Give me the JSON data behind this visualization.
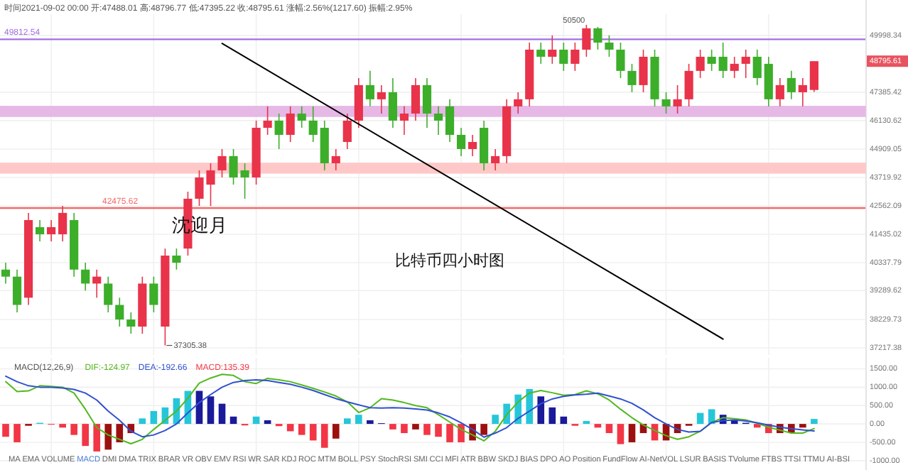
{
  "chart_data": [
    {
      "type": "candlestick",
      "log": "y",
      "grid": true,
      "tick_labels": "y",
      "annotations": [
        "时间2021-09-02 00:00 开:47488.01 高:48796.77 低:47395.22 收:48795.61 涨幅:2.56%(1217.60) 振幅:2.95%",
        "50500",
        "37305.38",
        "沈迎月",
        "比特币四小时图",
        "48795.61"
      ],
      "categories": [
        null,
        null,
        null,
        null,
        null,
        null,
        null,
        null,
        null,
        null,
        null,
        null,
        null,
        null,
        null,
        null,
        null,
        null,
        null,
        null,
        null,
        null,
        null,
        null,
        null,
        null,
        null,
        null,
        null,
        null,
        null,
        null,
        null,
        null,
        null,
        null,
        null,
        null,
        null,
        null,
        null,
        null,
        null,
        null,
        null,
        null,
        null,
        null,
        null,
        null,
        null,
        null,
        null,
        null,
        null,
        null,
        null,
        null,
        null,
        null,
        null,
        null,
        null,
        null,
        null,
        null,
        null,
        null,
        null,
        null,
        null,
        null,
        null,
        null,
        null,
        null
      ],
      "ohlc": [
        [
          40075,
          40338,
          39550,
          39810
        ],
        [
          39810,
          40075,
          38490,
          38760
        ],
        [
          39025,
          42280,
          38760,
          41995
        ],
        [
          41715,
          41995,
          41160,
          41435
        ],
        [
          41435,
          41995,
          41160,
          41715
        ],
        [
          41435,
          42562,
          41160,
          42280
        ],
        [
          41995,
          42280,
          39810,
          40075
        ],
        [
          40075,
          40338,
          39290,
          39550
        ],
        [
          39550,
          40075,
          39025,
          39810
        ],
        [
          39550,
          39810,
          38490,
          38760
        ],
        [
          38760,
          39025,
          37975,
          38230
        ],
        [
          38230,
          38490,
          37722,
          37975
        ],
        [
          37975,
          39810,
          37722,
          39550
        ],
        [
          39550,
          39810,
          38490,
          38760
        ],
        [
          37975,
          40880,
          37305.38,
          40610
        ],
        [
          40610,
          40880,
          40075,
          40338
        ],
        [
          40880,
          43135,
          40610,
          42850
        ],
        [
          42850,
          44015,
          42562,
          43720
        ],
        [
          43425,
          44310,
          42562,
          44015
        ],
        [
          44015,
          44909,
          43720,
          44610
        ],
        [
          44610,
          44909,
          43425,
          43720
        ],
        [
          44015,
          44310,
          42850,
          43720
        ],
        [
          43720,
          46131,
          43425,
          45820
        ],
        [
          45820,
          46755,
          45515,
          46131
        ],
        [
          46131,
          46440,
          44909,
          45515
        ],
        [
          45515,
          46755,
          45210,
          46440
        ],
        [
          46440,
          46755,
          45820,
          46131
        ],
        [
          46131,
          46755,
          45210,
          45515
        ],
        [
          45820,
          46131,
          44015,
          44310
        ],
        [
          44310,
          44909,
          44015,
          44610
        ],
        [
          45210,
          46440,
          44909,
          46131
        ],
        [
          46131,
          48025,
          45820,
          47705
        ],
        [
          47705,
          48350,
          46755,
          47070
        ],
        [
          47070,
          47705,
          46440,
          47385
        ],
        [
          47385,
          48025,
          45820,
          46131
        ],
        [
          46131,
          46755,
          45515,
          46440
        ],
        [
          46440,
          48025,
          46131,
          47705
        ],
        [
          47705,
          48025,
          45820,
          46440
        ],
        [
          46440,
          46755,
          45515,
          46131
        ],
        [
          46755,
          47070,
          45210,
          45515
        ],
        [
          45515,
          45820,
          44610,
          44909
        ],
        [
          44909,
          45515,
          44610,
          45210
        ],
        [
          45820,
          46131,
          44015,
          44310
        ],
        [
          44310,
          44909,
          44015,
          44610
        ],
        [
          44610,
          47070,
          44310,
          46755
        ],
        [
          46755,
          47385,
          46440,
          47070
        ],
        [
          47070,
          49660,
          46755,
          49330
        ],
        [
          49330,
          49660,
          48674,
          49000
        ],
        [
          49000,
          49998,
          48674,
          49330
        ],
        [
          49330,
          49660,
          48350,
          48674
        ],
        [
          48674,
          49660,
          48350,
          49330
        ],
        [
          49330,
          50500,
          49000,
          50335
        ],
        [
          50335,
          50400,
          49330,
          49660
        ],
        [
          49660,
          49998,
          49000,
          49330
        ],
        [
          49330,
          49660,
          48025,
          48350
        ],
        [
          48350,
          48674,
          47385,
          47705
        ],
        [
          47705,
          49330,
          47385,
          49000
        ],
        [
          49000,
          49330,
          46755,
          47070
        ],
        [
          47070,
          47385,
          46440,
          46755
        ],
        [
          46755,
          47705,
          46440,
          47070
        ],
        [
          47070,
          48674,
          46755,
          48350
        ],
        [
          48350,
          49330,
          48025,
          49000
        ],
        [
          49000,
          49330,
          48350,
          48674
        ],
        [
          49000,
          49660,
          48025,
          48350
        ],
        [
          48350,
          49000,
          48025,
          48674
        ],
        [
          48674,
          49330,
          48025,
          49000
        ],
        [
          49000,
          49330,
          47705,
          48025
        ],
        [
          48674,
          49000,
          46755,
          47070
        ],
        [
          47070,
          48025,
          46755,
          47705
        ],
        [
          48025,
          48350,
          47070,
          47385
        ],
        [
          47385,
          48025,
          46755,
          47705
        ],
        [
          47488.01,
          48796.77,
          47395.22,
          48795.61
        ],
        null,
        null,
        null,
        null
      ],
      "series": [
        {
          "type": "line",
          "color": "#000000",
          "values": [
            null,
            null,
            null,
            null,
            null,
            null,
            null,
            null,
            null,
            null,
            null,
            null,
            null,
            null,
            null,
            null,
            null,
            null,
            null,
            49620,
            null,
            null,
            null,
            null,
            null,
            null,
            null,
            null,
            null,
            null,
            null,
            null,
            null,
            null,
            null,
            null,
            null,
            null,
            null,
            null,
            null,
            null,
            null,
            null,
            null,
            null,
            null,
            null,
            null,
            null,
            null,
            null,
            null,
            null,
            null,
            null,
            null,
            null,
            null,
            null,
            null,
            null,
            null,
            37530,
            null,
            null,
            null,
            null,
            null,
            null,
            null,
            null,
            null,
            null,
            null,
            null
          ]
        }
      ],
      "ylim": [
        36970,
        51010
      ],
      "yticks": [
        37217.38,
        38229.73,
        39289.62,
        40337.79,
        41435.02,
        42562.09,
        43719.92,
        44909.05,
        46130.62,
        47385.42,
        49998.34
      ],
      "ref_lines": [
        {
          "axis": "y",
          "value": 49812.54,
          "label": "49812.54",
          "color": "#a070e0"
        },
        {
          "axis": "y",
          "value": 42475.62,
          "label": "42475.62",
          "color": "#f06a6a"
        }
      ],
      "bands": [
        {
          "axis": "y",
          "from": 43900,
          "to": 44310,
          "color": "#ffc8c8"
        },
        {
          "axis": "y",
          "from": 46315,
          "to": 46755,
          "color": "#e6b8e6"
        }
      ]
    },
    {
      "type": "bar",
      "grid": true,
      "tick_labels": "y",
      "legend": "top left",
      "legend_title": "MACD(12,26,9)",
      "categories": [
        null,
        null,
        null,
        null,
        null,
        null,
        null,
        null,
        null,
        null,
        null,
        null,
        null,
        null,
        null,
        null,
        null,
        null,
        null,
        null,
        null,
        null,
        null,
        null,
        null,
        null,
        null,
        null,
        null,
        null,
        null,
        null,
        null,
        null,
        null,
        null,
        null,
        null,
        null,
        null,
        null,
        null,
        null,
        null,
        null,
        null,
        null,
        null,
        null,
        null,
        null,
        null,
        null,
        null,
        null,
        null,
        null,
        null,
        null,
        null,
        null,
        null,
        null,
        null,
        null,
        null,
        null,
        null,
        null,
        null,
        null,
        null,
        null,
        null,
        null,
        null
      ],
      "series": [
        {
          "type": "line",
          "name": "DIF:-124.97",
          "color": "#52b81e",
          "values": [
            1150,
            880,
            900,
            1040,
            1020,
            1000,
            840,
            400,
            -100,
            -300,
            -420,
            -540,
            -420,
            -150,
            100,
            350,
            700,
            1110,
            1250,
            1350,
            1320,
            1150,
            1100,
            1240,
            1200,
            1150,
            1060,
            970,
            870,
            760,
            600,
            310,
            440,
            690,
            650,
            580,
            500,
            440,
            250,
            50,
            -150,
            -300,
            -460,
            -200,
            250,
            600,
            840,
            910,
            850,
            780,
            800,
            900,
            820,
            650,
            400,
            170,
            -30,
            -180,
            -320,
            -420,
            -350,
            -200,
            40,
            170,
            140,
            110,
            20,
            -90,
            -170,
            -250,
            -250,
            -125,
            null,
            null,
            null,
            null
          ]
        },
        {
          "type": "line",
          "name": "DEA:-192.66",
          "color": "#3050d0",
          "values": [
            1300,
            1150,
            1040,
            1000,
            1000,
            980,
            940,
            840,
            650,
            350,
            100,
            -200,
            -350,
            -300,
            -180,
            0,
            300,
            580,
            800,
            1000,
            1130,
            1180,
            1200,
            1180,
            1130,
            1080,
            1000,
            910,
            800,
            690,
            600,
            520,
            440,
            430,
            440,
            430,
            410,
            380,
            300,
            190,
            30,
            -150,
            -360,
            -250,
            -100,
            150,
            350,
            550,
            680,
            750,
            790,
            810,
            840,
            760,
            680,
            560,
            380,
            170,
            0,
            -150,
            -220,
            -200,
            40,
            90,
            110,
            80,
            30,
            -30,
            -90,
            -130,
            -160,
            -193,
            null,
            null,
            null,
            null
          ]
        },
        {
          "type": "bar",
          "name": "MACD:135.39",
          "color": "#f23645",
          "values": [
            -350,
            -500,
            -50,
            30,
            -20,
            -100,
            -300,
            -600,
            -750,
            -700,
            -500,
            -250,
            150,
            350,
            450,
            700,
            900,
            900,
            750,
            550,
            200,
            -40,
            200,
            100,
            -60,
            -200,
            -300,
            -450,
            -650,
            -400,
            150,
            250,
            100,
            20,
            -150,
            -250,
            -150,
            -300,
            -350,
            -500,
            -500,
            -450,
            -300,
            250,
            550,
            800,
            950,
            750,
            450,
            200,
            -50,
            80,
            -100,
            -250,
            -550,
            -500,
            -250,
            -450,
            -450,
            -250,
            -50,
            300,
            400,
            250,
            100,
            30,
            -100,
            -250,
            -250,
            -250,
            -100,
            135,
            null,
            null,
            null,
            null
          ],
          "colors": [
            "#f23645",
            "#f23645",
            "#9c1010",
            "#26c6da",
            "#f23645",
            "#f23645",
            "#f23645",
            "#f23645",
            "#f23645",
            "#9c1010",
            "#9c1010",
            "#9c1010",
            "#26c6da",
            "#26c6da",
            "#26c6da",
            "#26c6da",
            "#26c6da",
            "#1a1a9a",
            "#1a1a9a",
            "#1a1a9a",
            "#1a1a9a",
            "#f23645",
            "#26c6da",
            "#1a1a9a",
            "#f23645",
            "#f23645",
            "#f23645",
            "#f23645",
            "#f23645",
            "#9c1010",
            "#26c6da",
            "#26c6da",
            "#1a1a9a",
            "#1a1a9a",
            "#f23645",
            "#f23645",
            "#9c1010",
            "#f23645",
            "#f23645",
            "#f23645",
            "#f23645",
            "#9c1010",
            "#9c1010",
            "#26c6da",
            "#26c6da",
            "#26c6da",
            "#26c6da",
            "#1a1a9a",
            "#1a1a9a",
            "#1a1a9a",
            "#f23645",
            "#26c6da",
            "#f23645",
            "#f23645",
            "#f23645",
            "#9c1010",
            "#9c1010",
            "#f23645",
            "#9c1010",
            "#9c1010",
            "#9c1010",
            "#26c6da",
            "#26c6da",
            "#1a1a9a",
            "#1a1a9a",
            "#1a1a9a",
            "#f23645",
            "#f23645",
            "#9c1010",
            "#9c1010",
            "#9c1010",
            "#26c6da",
            null,
            null,
            null,
            null
          ]
        }
      ],
      "ylim": [
        -1100,
        1800
      ],
      "yticks": [
        {
          "value": 1500,
          "label": "1500.00"
        },
        {
          "value": 1000,
          "label": "1000.00"
        },
        {
          "value": 500,
          "label": "500.00"
        },
        {
          "value": 0,
          "label": "0.00"
        },
        {
          "value": -500,
          "label": "-500.00"
        },
        {
          "value": -1000,
          "label": "-1000.00"
        }
      ],
      "annotations": [
        "MA",
        "EMA",
        "VOLUME",
        "MACD",
        "DMI",
        "DMA",
        "TRIX",
        "BRAR",
        "VR",
        "OBV",
        "EMV",
        "RSI",
        "WR",
        "SAR",
        "KDJ",
        "ROC",
        "MTM",
        "BOLL",
        "PSY",
        "StochRSI",
        "SMI",
        "CCI",
        "MFI",
        "ATR",
        "BBW",
        "SKDJ",
        "BIAS",
        "DPO",
        "AO",
        "Position",
        "FundFlow",
        "AI-NetVOL",
        "LSUR",
        "BASIS",
        "TVolume",
        "FTBS",
        "TTSI",
        "TTMU",
        "AI-BSI"
      ]
    }
  ]
}
